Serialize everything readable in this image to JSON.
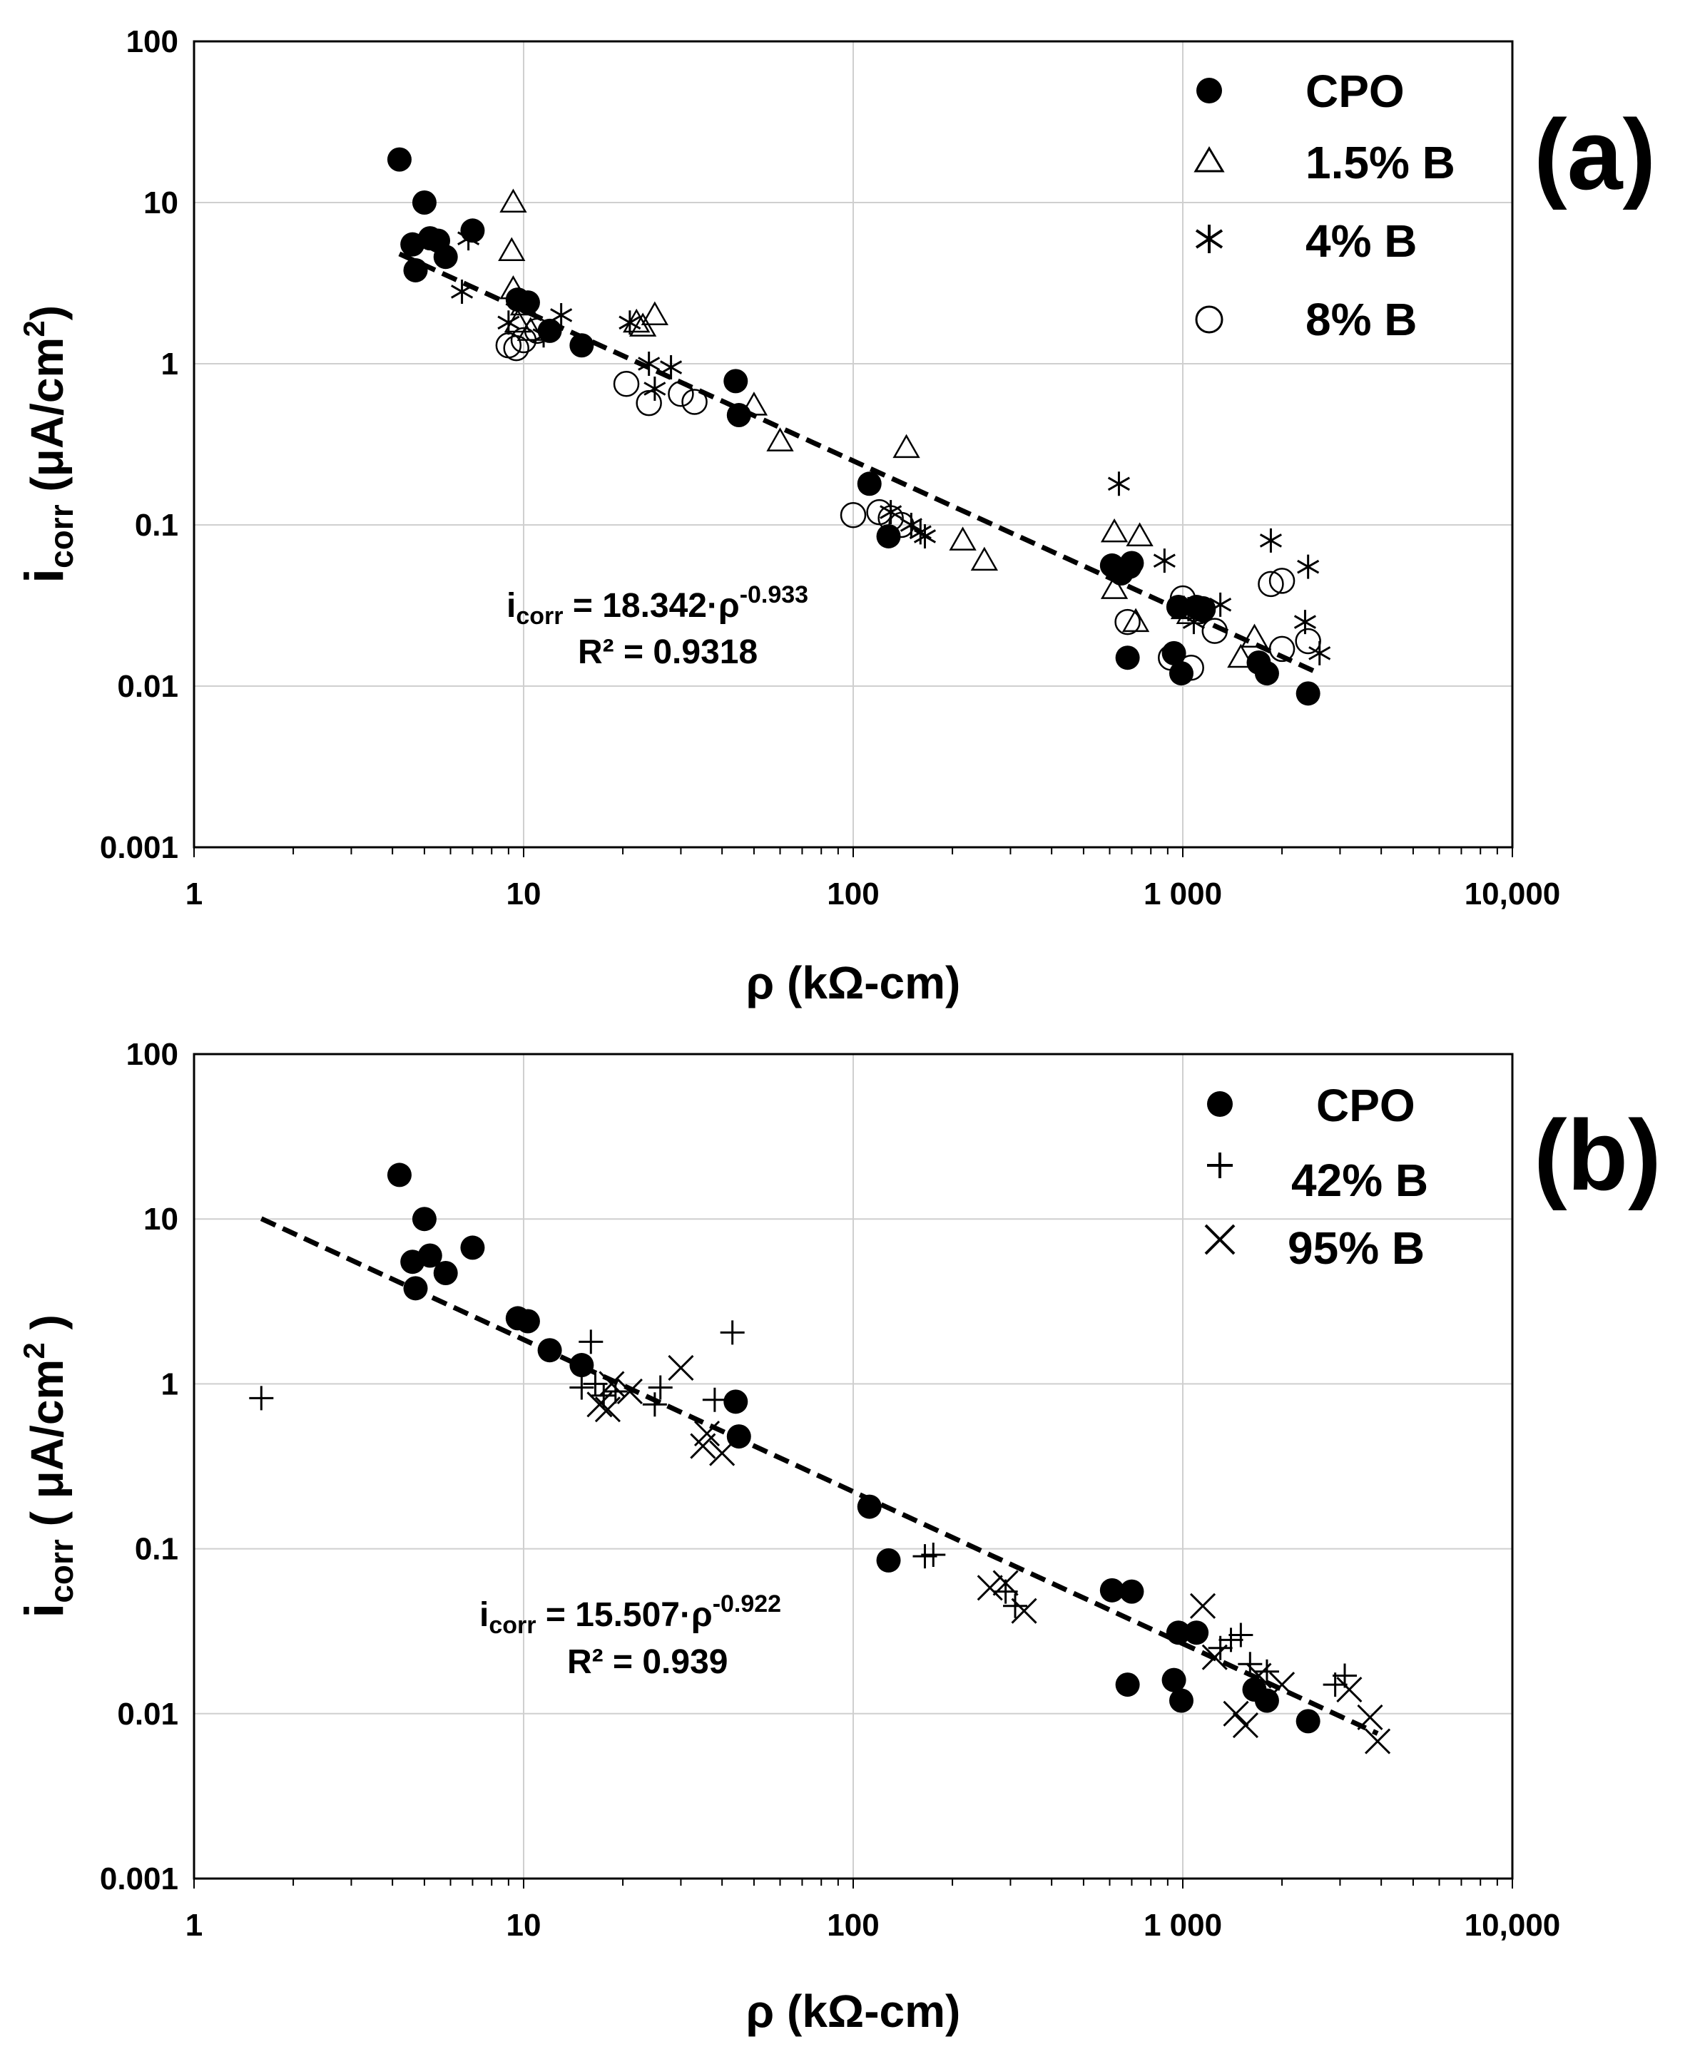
{
  "chart_data": [
    {
      "panel": "(a)",
      "type": "scatter",
      "x_scale": "log",
      "y_scale": "log",
      "xlim": [
        1,
        10000
      ],
      "ylim": [
        0.001,
        100
      ],
      "x_ticks": [
        1,
        10,
        100,
        1000,
        10000
      ],
      "x_tick_labels": [
        "1",
        "10",
        "100",
        "1 000",
        "10,000"
      ],
      "y_ticks": [
        0.001,
        0.01,
        0.1,
        1,
        10,
        100
      ],
      "y_tick_labels": [
        "0.001",
        "0.01",
        "0.1",
        "1",
        "10",
        "100"
      ],
      "xlabel": "ρ (kΩ-cm)",
      "ylabel": {
        "main": "i",
        "sub": "corr",
        "unit": " (μA/cm",
        "sup": "2",
        "close": ")"
      },
      "grid": true,
      "legend_position": "top-right",
      "equation": {
        "i": "i",
        "sub": "corr",
        "mid": " = 18.342·ρ",
        "exp": "-0.933",
        "r2": "R² = 0.9318"
      },
      "trendline": {
        "coef": 18.342,
        "exponent": -0.933,
        "x_range": [
          4.2,
          2600
        ]
      },
      "series": [
        {
          "name": "CPO",
          "marker": "filled-circle",
          "points": [
            [
              4.2,
              18.5
            ],
            [
              4.6,
              5.5
            ],
            [
              4.7,
              3.8
            ],
            [
              5.0,
              10
            ],
            [
              5.2,
              6
            ],
            [
              5.5,
              5.8
            ],
            [
              5.8,
              4.6
            ],
            [
              7.0,
              6.7
            ],
            [
              9.6,
              2.5
            ],
            [
              10.3,
              2.4
            ],
            [
              12.0,
              1.6
            ],
            [
              15.0,
              1.3
            ],
            [
              44,
              0.78
            ],
            [
              45,
              0.48
            ],
            [
              112,
              0.18
            ],
            [
              128,
              0.085
            ],
            [
              610,
              0.056
            ],
            [
              650,
              0.05
            ],
            [
              690,
              0.055
            ],
            [
              700,
              0.058
            ],
            [
              680,
              0.015
            ],
            [
              940,
              0.016
            ],
            [
              970,
              0.031
            ],
            [
              990,
              0.012
            ],
            [
              1100,
              0.031
            ],
            [
              1150,
              0.03
            ],
            [
              1700,
              0.014
            ],
            [
              1800,
              0.012
            ],
            [
              2400,
              0.009
            ]
          ]
        },
        {
          "name": "1.5% B",
          "marker": "open-triangle",
          "points": [
            [
              9.3,
              10
            ],
            [
              9.2,
              5
            ],
            [
              9.3,
              2.9
            ],
            [
              10.0,
              2.3
            ],
            [
              9.6,
              1.8
            ],
            [
              10.5,
              1.6
            ],
            [
              22,
              1.8
            ],
            [
              23,
              1.7
            ],
            [
              25,
              2.0
            ],
            [
              50,
              0.55
            ],
            [
              60,
              0.33
            ],
            [
              145,
              0.3
            ],
            [
              215,
              0.08
            ],
            [
              250,
              0.06
            ],
            [
              620,
              0.09
            ],
            [
              620,
              0.04
            ],
            [
              740,
              0.085
            ],
            [
              720,
              0.025
            ],
            [
              1010,
              0.03
            ],
            [
              1050,
              0.028
            ],
            [
              1500,
              0.015
            ],
            [
              1650,
              0.02
            ]
          ]
        },
        {
          "name": "4% B",
          "marker": "asterisk",
          "points": [
            [
              6.8,
              6
            ],
            [
              6.5,
              2.8
            ],
            [
              9.0,
              1.8
            ],
            [
              11.5,
              1.5
            ],
            [
              13.0,
              2.0
            ],
            [
              21,
              1.8
            ],
            [
              24,
              1.0
            ],
            [
              25,
              0.7
            ],
            [
              28,
              0.95
            ],
            [
              130,
              0.12
            ],
            [
              150,
              0.1
            ],
            [
              160,
              0.09
            ],
            [
              165,
              0.085
            ],
            [
              640,
              0.18
            ],
            [
              880,
              0.06
            ],
            [
              1040,
              0.03
            ],
            [
              1080,
              0.025
            ],
            [
              1300,
              0.032
            ],
            [
              1850,
              0.08
            ],
            [
              2350,
              0.025
            ],
            [
              2400,
              0.055
            ],
            [
              2600,
              0.016
            ]
          ]
        },
        {
          "name": "8% B",
          "marker": "open-circle",
          "points": [
            [
              9.0,
              1.3
            ],
            [
              9.5,
              1.25
            ],
            [
              10.0,
              1.4
            ],
            [
              11.0,
              1.6
            ],
            [
              20.5,
              0.75
            ],
            [
              24,
              0.57
            ],
            [
              30,
              0.65
            ],
            [
              33,
              0.58
            ],
            [
              100,
              0.115
            ],
            [
              120,
              0.12
            ],
            [
              130,
              0.11
            ],
            [
              140,
              0.1
            ],
            [
              680,
              0.025
            ],
            [
              920,
              0.015
            ],
            [
              1000,
              0.035
            ],
            [
              1060,
              0.013
            ],
            [
              1150,
              0.03
            ],
            [
              1250,
              0.022
            ],
            [
              1850,
              0.043
            ],
            [
              2000,
              0.045
            ],
            [
              2000,
              0.017
            ],
            [
              2400,
              0.019
            ]
          ]
        }
      ]
    },
    {
      "panel": "(b)",
      "type": "scatter",
      "x_scale": "log",
      "y_scale": "log",
      "xlim": [
        1,
        10000
      ],
      "ylim": [
        0.001,
        100
      ],
      "x_ticks": [
        1,
        10,
        100,
        1000,
        10000
      ],
      "x_tick_labels": [
        "1",
        "10",
        "100",
        "1 000",
        "10,000"
      ],
      "y_ticks": [
        0.001,
        0.01,
        0.1,
        1,
        10,
        100
      ],
      "y_tick_labels": [
        "0.001",
        "0.01",
        "0.1",
        "1",
        "10",
        "100"
      ],
      "xlabel": "ρ (kΩ-cm)",
      "ylabel": {
        "main": "i",
        "sub": "corr",
        "unit": " ( μA/cm",
        "sup": "2",
        "close": " )"
      },
      "grid": true,
      "legend_position": "top-right",
      "equation": {
        "i": "i",
        "sub": "corr",
        "mid": " = 15.507·ρ",
        "exp": "-0.922",
        "r2": "R² = 0.939"
      },
      "trendline": {
        "coef": 15.507,
        "exponent": -0.922,
        "x_range": [
          1.6,
          3900
        ]
      },
      "series": [
        {
          "name": "CPO",
          "marker": "filled-circle",
          "points": [
            [
              4.2,
              18.5
            ],
            [
              4.6,
              5.5
            ],
            [
              4.7,
              3.8
            ],
            [
              5.0,
              10
            ],
            [
              5.2,
              6
            ],
            [
              5.8,
              4.7
            ],
            [
              7.0,
              6.7
            ],
            [
              9.6,
              2.5
            ],
            [
              10.3,
              2.4
            ],
            [
              12.0,
              1.6
            ],
            [
              15.0,
              1.3
            ],
            [
              44,
              0.78
            ],
            [
              45,
              0.48
            ],
            [
              112,
              0.18
            ],
            [
              128,
              0.085
            ],
            [
              610,
              0.056
            ],
            [
              700,
              0.055
            ],
            [
              680,
              0.015
            ],
            [
              940,
              0.016
            ],
            [
              970,
              0.031
            ],
            [
              990,
              0.012
            ],
            [
              1100,
              0.031
            ],
            [
              1650,
              0.014
            ],
            [
              1800,
              0.012
            ],
            [
              2400,
              0.009
            ]
          ]
        },
        {
          "name": "42% B",
          "marker": "plus",
          "points": [
            [
              1.6,
              0.82
            ],
            [
              15.0,
              0.95
            ],
            [
              16.0,
              1.8
            ],
            [
              16.5,
              1.0
            ],
            [
              17.5,
              0.85
            ],
            [
              19,
              0.9
            ],
            [
              25,
              0.75
            ],
            [
              26,
              0.95
            ],
            [
              38,
              0.8
            ],
            [
              43,
              2.05
            ],
            [
              165,
              0.09
            ],
            [
              175,
              0.092
            ],
            [
              290,
              0.055
            ],
            [
              310,
              0.045
            ],
            [
              1300,
              0.025
            ],
            [
              1400,
              0.028
            ],
            [
              1500,
              0.03
            ],
            [
              1600,
              0.02
            ],
            [
              1800,
              0.018
            ],
            [
              2900,
              0.015
            ],
            [
              3100,
              0.017
            ]
          ]
        },
        {
          "name": "95% B",
          "marker": "cross",
          "points": [
            [
              17,
              0.75
            ],
            [
              18,
              0.7
            ],
            [
              18.5,
              1.0
            ],
            [
              21,
              0.9
            ],
            [
              30,
              1.25
            ],
            [
              35,
              0.42
            ],
            [
              36,
              0.5
            ],
            [
              40,
              0.38
            ],
            [
              260,
              0.058
            ],
            [
              290,
              0.062
            ],
            [
              330,
              0.042
            ],
            [
              1150,
              0.045
            ],
            [
              1250,
              0.022
            ],
            [
              1450,
              0.01
            ],
            [
              1550,
              0.0085
            ],
            [
              1700,
              0.017
            ],
            [
              2000,
              0.015
            ],
            [
              3200,
              0.014
            ],
            [
              3700,
              0.0095
            ],
            [
              3900,
              0.0068
            ]
          ]
        }
      ]
    }
  ]
}
